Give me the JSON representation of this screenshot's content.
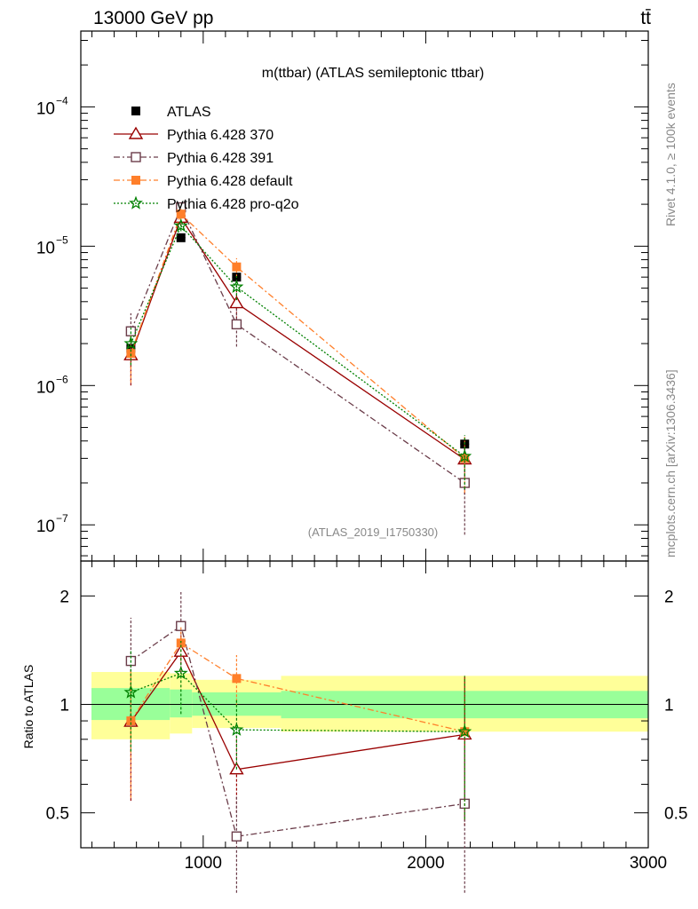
{
  "header": {
    "left_label": "13000 GeV pp",
    "right_label": "tt̄"
  },
  "side_labels": {
    "rivet": "Rivet 4.1.0, ≥ 100k events",
    "mcplots": "mcplots.cern.ch [arXiv:1306.3436]"
  },
  "chart_data": [
    {
      "type": "scatter",
      "panel": "main",
      "title": "m(ttbar) (ATLAS semileptonic ttbar)",
      "watermark": "(ATLAS_2019_I1750330)",
      "xlabel": "",
      "ylabel": "",
      "xlim": [
        450,
        3000
      ],
      "ylim": [
        5.5e-08,
        0.00035
      ],
      "yscale": "log",
      "y_ticks": [
        1e-07,
        1e-06,
        1e-05,
        0.0001
      ],
      "y_tick_labels": [
        {
          "base": "10",
          "exp": "−7"
        },
        {
          "base": "10",
          "exp": "−6"
        },
        {
          "base": "10",
          "exp": "−5"
        },
        {
          "base": "10",
          "exp": "−4"
        }
      ],
      "x": [
        675,
        900,
        1150,
        2175
      ],
      "x_err": [
        [
          450,
          850
        ],
        [
          850,
          950
        ],
        [
          950,
          1350
        ],
        [
          1350,
          3000
        ]
      ],
      "series": [
        {
          "name": "ATLAS",
          "color": "#000000",
          "marker": "square-filled",
          "line": "none",
          "values": [
            1.85e-06,
            1.15e-05,
            6e-06,
            3.8e-07
          ],
          "err_low": [
            1.8e-06,
            1.1e-05,
            5.7e-06,
            3.4e-07
          ],
          "err_high": [
            1.9e-06,
            1.2e-05,
            6.3e-06,
            4.2e-07
          ]
        },
        {
          "name": "Pythia 6.428 370",
          "color": "#990000",
          "marker": "triangle-open",
          "line": "solid",
          "values": [
            1.65e-06,
            1.6e-05,
            3.9e-06,
            2.95e-07
          ],
          "err_low": [
            1e-06,
            1.4e-05,
            3e-06,
            1.65e-07
          ],
          "err_high": [
            2.3e-06,
            1.8e-05,
            4.8e-06,
            4.2e-07
          ]
        },
        {
          "name": "Pythia 6.428 391",
          "color": "#6b3d4a",
          "marker": "square-open",
          "line": "dashdot",
          "values": [
            2.45e-06,
            1.9e-05,
            2.75e-06,
            2e-07
          ],
          "err_low": [
            1.65e-06,
            1.75e-05,
            1.9e-06,
            8.5e-08
          ],
          "err_high": [
            3.3e-06,
            2.05e-05,
            3.6e-06,
            3.1e-07
          ]
        },
        {
          "name": "Pythia 6.428 default",
          "color": "#ff7f2a",
          "marker": "square-filled",
          "line": "dashdot",
          "values": [
            1.7e-06,
            1.7e-05,
            7.1e-06,
            3e-07
          ],
          "err_low": [
            1.05e-06,
            1.55e-05,
            6e-06,
            1.7e-07
          ],
          "err_high": [
            2.35e-06,
            1.85e-05,
            8.2e-06,
            4.3e-07
          ]
        },
        {
          "name": "Pythia 6.428 pro-q2o",
          "color": "#008000",
          "marker": "star-open",
          "line": "dotted",
          "values": [
            2e-06,
            1.4e-05,
            5.1e-06,
            3.1e-07
          ],
          "err_low": [
            1.4e-06,
            1.28e-05,
            4.1e-06,
            1.8e-07
          ],
          "err_high": [
            2.6e-06,
            1.52e-05,
            6.1e-06,
            4.4e-07
          ]
        }
      ]
    },
    {
      "type": "scatter",
      "panel": "ratio",
      "ylabel": "Ratio to ATLAS",
      "xlim": [
        450,
        3000
      ],
      "ylim": [
        0.4,
        2.5
      ],
      "yscale": "log",
      "x_ticks": [
        1000,
        2000,
        3000
      ],
      "x_tick_labels": [
        "1000",
        "2000",
        "3000"
      ],
      "y_ticks": [
        0.5,
        1,
        2
      ],
      "y_tick_labels": [
        "0.5",
        "1",
        "2"
      ],
      "reference_line": 1,
      "bands": [
        {
          "x0": 450,
          "x1": 850,
          "inner": [
            0.905,
            1.11
          ],
          "outer": [
            0.8,
            1.23
          ]
        },
        {
          "x0": 850,
          "x1": 950,
          "inner": [
            0.92,
            1.1
          ],
          "outer": [
            0.83,
            1.22
          ]
        },
        {
          "x0": 950,
          "x1": 1350,
          "inner": [
            0.93,
            1.08
          ],
          "outer": [
            0.86,
            1.17
          ]
        },
        {
          "x0": 1350,
          "x1": 3000,
          "inner": [
            0.915,
            1.09
          ],
          "outer": [
            0.84,
            1.2
          ]
        }
      ],
      "x": [
        675,
        900,
        1150,
        2175
      ],
      "series": [
        {
          "name": "Pythia 6.428 370",
          "color": "#990000",
          "marker": "triangle-open",
          "line": "solid",
          "values": [
            0.895,
            1.4,
            0.66,
            0.825
          ],
          "err_low": [
            0.54,
            1.22,
            0.5,
            0.46
          ],
          "err_high": [
            1.25,
            1.58,
            0.82,
            1.19
          ]
        },
        {
          "name": "Pythia 6.428 391",
          "color": "#6b3d4a",
          "marker": "square-open",
          "line": "dashdot",
          "values": [
            1.32,
            1.65,
            0.43,
            0.53
          ],
          "err_low": [
            0.9,
            1.52,
            0.3,
            0.3
          ],
          "err_high": [
            1.74,
            2.05,
            0.56,
            0.76
          ]
        },
        {
          "name": "Pythia 6.428 default",
          "color": "#ff7f2a",
          "marker": "square-filled",
          "line": "dashdot",
          "values": [
            0.9,
            1.48,
            1.18,
            0.84
          ],
          "err_low": [
            0.55,
            1.32,
            0.99,
            0.48
          ],
          "err_high": [
            1.25,
            1.64,
            1.37,
            1.2
          ]
        },
        {
          "name": "Pythia 6.428 pro-q2o",
          "color": "#008000",
          "marker": "star-open",
          "line": "dotted",
          "values": [
            1.08,
            1.22,
            0.85,
            0.84
          ],
          "err_low": [
            0.74,
            0.94,
            0.66,
            0.48
          ],
          "err_high": [
            1.42,
            1.5,
            1.04,
            1.2
          ]
        }
      ]
    }
  ],
  "colors": {
    "band_inner": "#99ff99",
    "band_outer": "#ffff99",
    "axis": "#000000"
  }
}
